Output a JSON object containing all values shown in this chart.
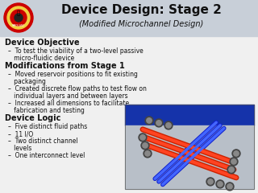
{
  "title": "Device Design: Stage 2",
  "subtitle": "(Modified Microchannel Design)",
  "background_color": "#f0f0f0",
  "title_color": "#111111",
  "subtitle_color": "#111111",
  "text_color": "#111111",
  "header_bg": "#d0d8e0",
  "title_fontsize": 11,
  "subtitle_fontsize": 7,
  "heading_fontsize": 7,
  "bullet_fontsize": 5.5,
  "sections": [
    {
      "heading": "Device Objective",
      "bullets": [
        "To test the viability of a two-level passive micro-fluidic device"
      ]
    },
    {
      "heading": "Modifications from Stage 1",
      "bullets": [
        "Moved reservoir positions to fit existing packaging",
        "Created discrete flow paths to test flow on individual layers and between layers",
        "Increased all dimensions to facilitate fabrication and testing"
      ]
    },
    {
      "heading": "Device Logic",
      "bullets": [
        "Five distinct fluid paths",
        "11 I/O",
        "Two distinct channel levels",
        "One interconnect level"
      ]
    }
  ]
}
